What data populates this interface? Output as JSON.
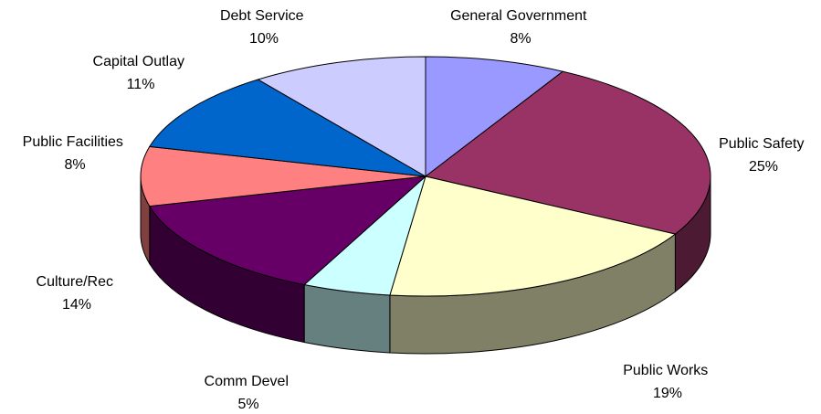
{
  "chart_data": {
    "type": "pie",
    "style": "3d",
    "title": "",
    "slices": [
      {
        "label": "General Government",
        "value": 8,
        "value_label": "8%",
        "color": "#9999ff"
      },
      {
        "label": "Public Safety",
        "value": 25,
        "value_label": "25%",
        "color": "#993366"
      },
      {
        "label": "Public Works",
        "value": 19,
        "value_label": "19%",
        "color": "#ffffcc"
      },
      {
        "label": "Comm Devel",
        "value": 5,
        "value_label": "5%",
        "color": "#ccffff"
      },
      {
        "label": "Culture/Rec",
        "value": 14,
        "value_label": "14%",
        "color": "#660066"
      },
      {
        "label": "Public Facilities",
        "value": 8,
        "value_label": "8%",
        "color": "#ff8080"
      },
      {
        "label": "Capital Outlay",
        "value": 11,
        "value_label": "11%",
        "color": "#0066cc"
      },
      {
        "label": "Debt Service",
        "value": 10,
        "value_label": "10%",
        "color": "#ccccff"
      }
    ]
  }
}
